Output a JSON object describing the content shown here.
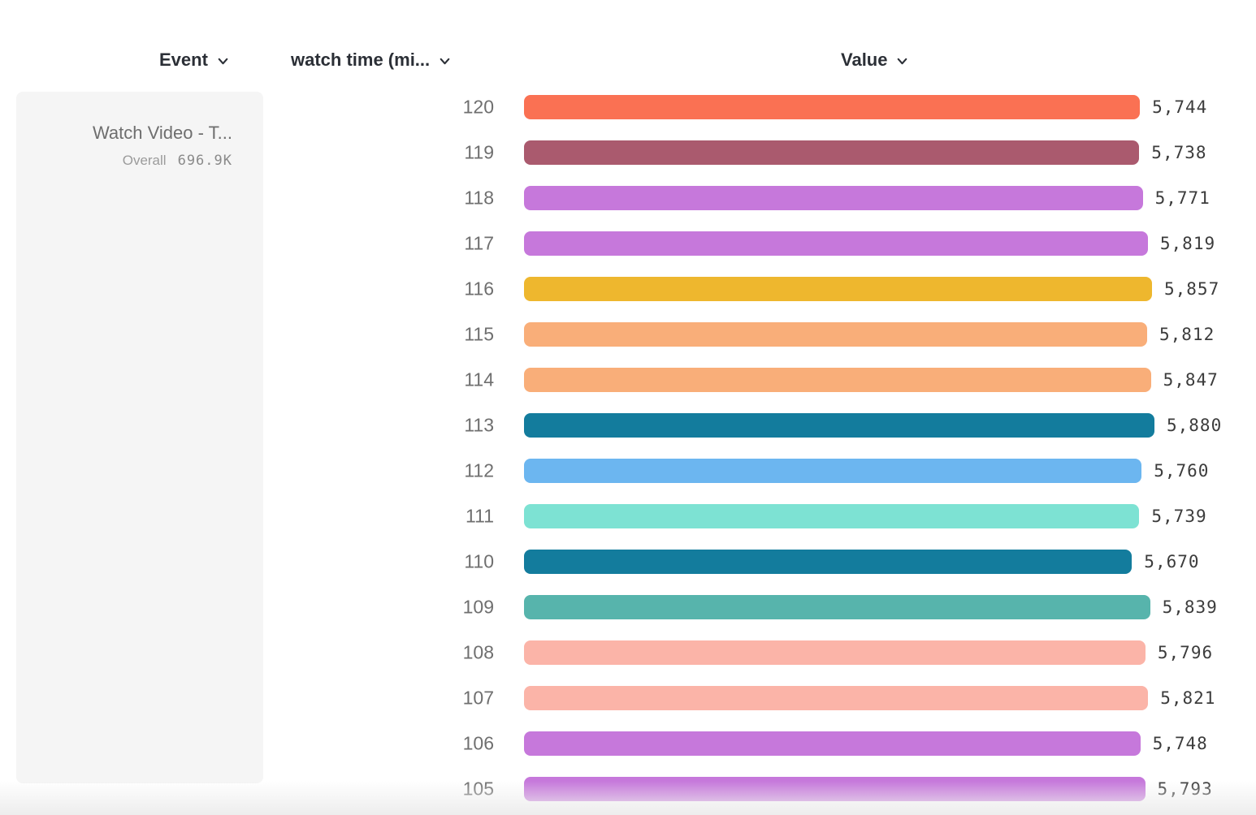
{
  "header": {
    "event": {
      "label": "Event"
    },
    "watch_time": {
      "label": "watch time (mi..."
    },
    "value": {
      "label": "Value"
    }
  },
  "event_card": {
    "title": "Watch Video - T...",
    "overall_label": "Overall",
    "overall_value": "696.9K"
  },
  "colors": {
    "header_text": "#2b2f36",
    "card_bg": "#f5f5f5",
    "row_label_text": "#6f6f6f",
    "value_text": "#3c3c3c"
  },
  "chart_data": {
    "type": "bar",
    "orientation": "horizontal",
    "title": "",
    "xlabel": "Value",
    "ylabel": "watch time (mi...",
    "xlim": [
      0,
      5880
    ],
    "max_value": 5880,
    "grid": false,
    "categories": [
      "120",
      "119",
      "118",
      "117",
      "116",
      "115",
      "114",
      "113",
      "112",
      "111",
      "110",
      "109",
      "108",
      "107",
      "106",
      "105"
    ],
    "values": [
      5744,
      5738,
      5771,
      5819,
      5857,
      5812,
      5847,
      5880,
      5760,
      5739,
      5670,
      5839,
      5796,
      5821,
      5748,
      5793
    ],
    "value_labels": [
      "5,744",
      "5,738",
      "5,771",
      "5,819",
      "5,857",
      "5,812",
      "5,847",
      "5,880",
      "5,760",
      "5,739",
      "5,670",
      "5,839",
      "5,796",
      "5,821",
      "5,748",
      "5,793"
    ],
    "bar_colors": [
      "#FA7153",
      "#AA5A6E",
      "#C678DB",
      "#C678DB",
      "#EEB72E",
      "#F9AE79",
      "#F9AE79",
      "#137C9D",
      "#6CB6F0",
      "#7DE2D3",
      "#137C9D",
      "#57B4AC",
      "#FBB4A8",
      "#FBB4A8",
      "#C678DB",
      "#C678DB"
    ]
  }
}
